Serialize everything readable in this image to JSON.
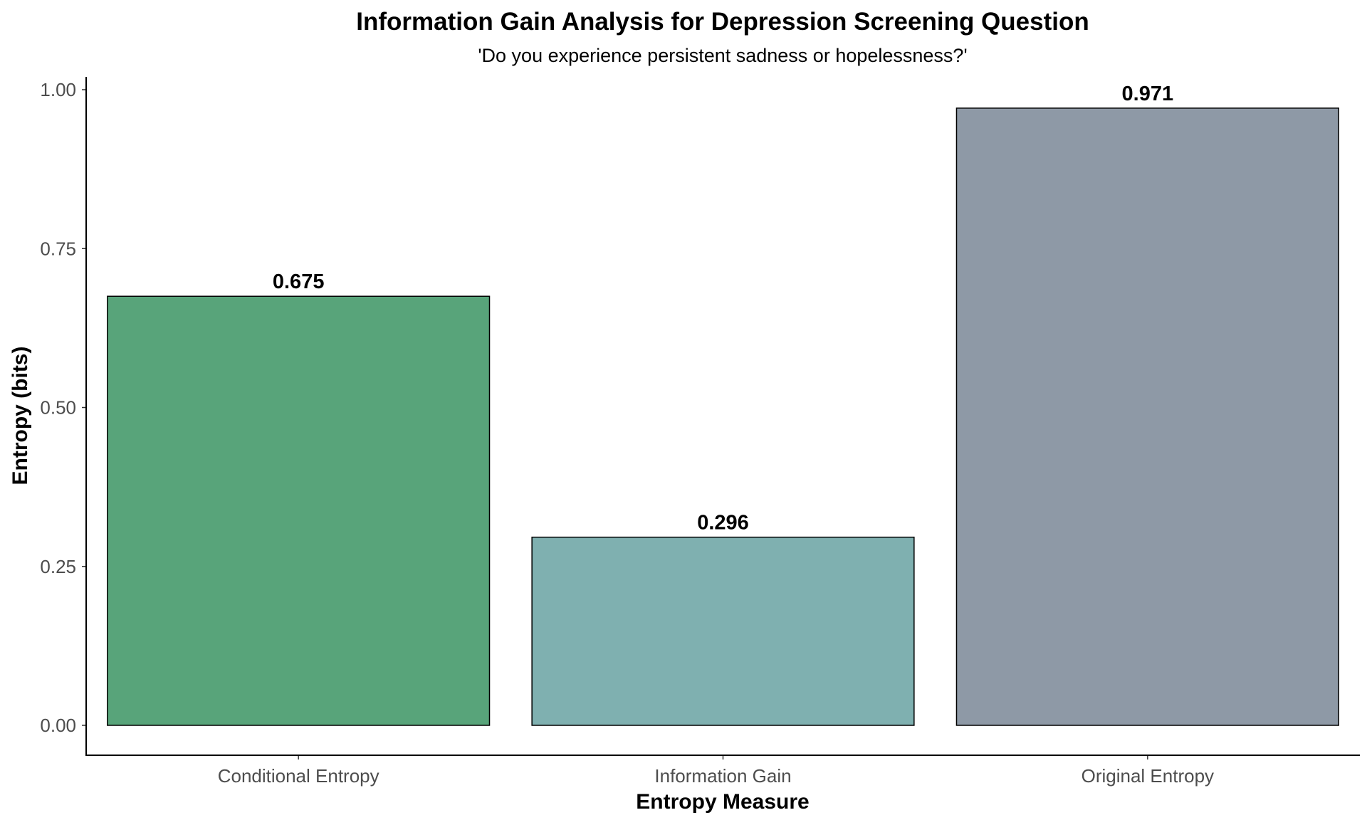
{
  "chart_data": {
    "type": "bar",
    "title": "Information Gain Analysis for Depression Screening Question",
    "subtitle": "'Do you experience persistent sadness or hopelessness?'",
    "xlabel": "Entropy Measure",
    "ylabel": "Entropy (bits)",
    "categories": [
      "Conditional Entropy",
      "Information Gain",
      "Original Entropy"
    ],
    "values": [
      0.675,
      0.296,
      0.971
    ],
    "value_labels": [
      "0.675",
      "0.296",
      "0.971"
    ],
    "colors": [
      "#58a47a",
      "#7fb0b0",
      "#8e99a6"
    ],
    "ylim": [
      0,
      1.0
    ],
    "yticks": [
      0,
      0.25,
      0.5,
      0.75,
      1.0
    ],
    "ytick_labels": [
      "0.00",
      "0.25",
      "0.50",
      "0.75",
      "1.00"
    ],
    "grid": false,
    "legend": "none"
  }
}
